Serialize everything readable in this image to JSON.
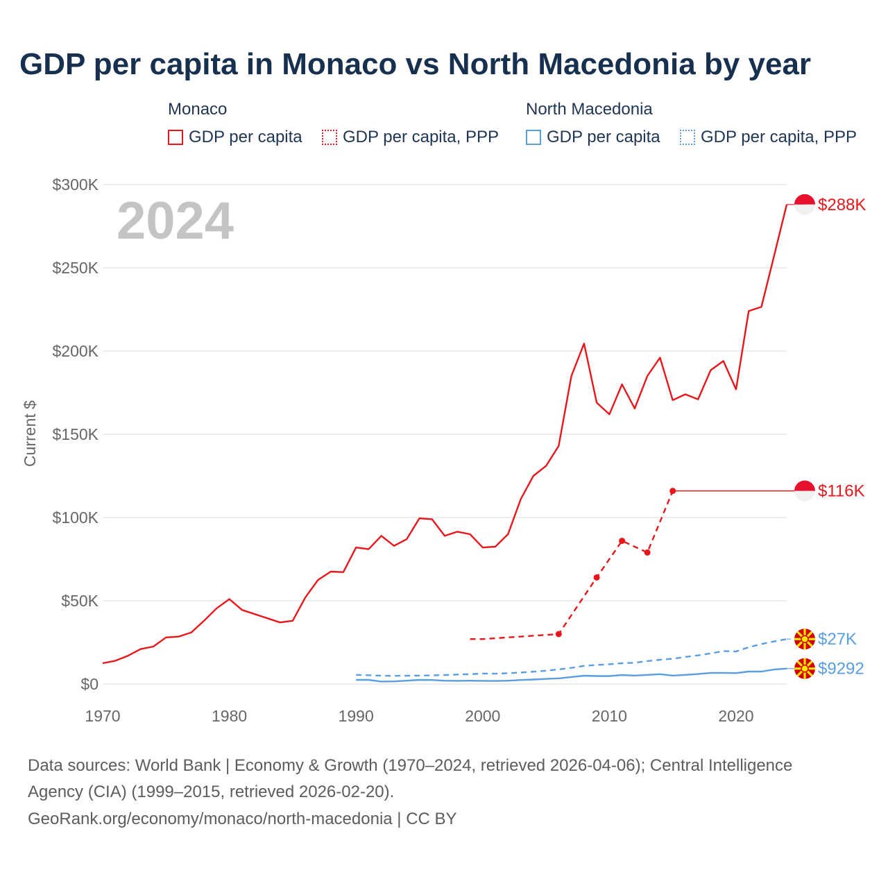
{
  "title": "GDP per capita in Monaco vs North Macedonia by year",
  "legend": {
    "groups": [
      {
        "name": "Monaco",
        "items": [
          "GDP per capita",
          "GDP per capita, PPP"
        ],
        "color": "#e8161b"
      },
      {
        "name": "North Macedonia",
        "items": [
          "GDP per capita",
          "GDP per capita, PPP"
        ],
        "color": "#5a9de0"
      }
    ]
  },
  "footer": {
    "line1": "Data sources: World Bank | Economy & Growth (1970–2024, retrieved 2026-04-06); Central Intelligence",
    "line2": "Agency (CIA) (1999–2015, retrieved 2026-02-20).",
    "line3": "GeoRank.org/economy/monaco/north-macedonia | CC BY"
  },
  "chart_data": {
    "type": "line",
    "year_label": "2024",
    "ylabel": "Current $",
    "xlim": [
      1970,
      2024
    ],
    "ylim": [
      0,
      300000
    ],
    "x_ticks": [
      1970,
      1980,
      1990,
      2000,
      2010,
      2020
    ],
    "y_ticks": [
      {
        "value": 0,
        "label": "$0"
      },
      {
        "value": 50000,
        "label": "$50K"
      },
      {
        "value": 100000,
        "label": "$100K"
      },
      {
        "value": 150000,
        "label": "$150K"
      },
      {
        "value": 200000,
        "label": "$200K"
      },
      {
        "value": 250000,
        "label": "$250K"
      },
      {
        "value": 300000,
        "label": "$300K"
      }
    ],
    "series": [
      {
        "name": "Monaco GDP per capita",
        "country": "Monaco",
        "color": "#e8161b",
        "style": "solid",
        "end_label": "$288K",
        "x": [
          1970,
          1971,
          1972,
          1973,
          1974,
          1975,
          1976,
          1977,
          1978,
          1979,
          1980,
          1981,
          1982,
          1983,
          1984,
          1985,
          1986,
          1987,
          1988,
          1989,
          1990,
          1991,
          1992,
          1993,
          1994,
          1995,
          1996,
          1997,
          1998,
          1999,
          2000,
          2001,
          2002,
          2003,
          2004,
          2005,
          2006,
          2007,
          2008,
          2009,
          2010,
          2011,
          2012,
          2013,
          2014,
          2015,
          2016,
          2017,
          2018,
          2019,
          2020,
          2021,
          2022,
          2023,
          2024
        ],
        "values": [
          12500,
          14000,
          17000,
          21000,
          22500,
          28000,
          28500,
          31000,
          38000,
          45500,
          51000,
          44500,
          42000,
          39500,
          37000,
          38000,
          52000,
          62500,
          67500,
          67200,
          82000,
          81000,
          89000,
          83000,
          87000,
          99500,
          99000,
          89000,
          91500,
          90000,
          82000,
          82500,
          90000,
          111000,
          125000,
          131000,
          143000,
          185000,
          204500,
          169000,
          162000,
          180000,
          165500,
          185000,
          196000,
          170500,
          174000,
          171000,
          188500,
          194000,
          177000,
          224000,
          226500,
          257000,
          288000
        ]
      },
      {
        "name": "Monaco GDP per capita, PPP",
        "country": "Monaco",
        "color": "#e8161b",
        "style": "dashed",
        "end_label": "$116K",
        "x": [
          1999,
          2000,
          2006,
          2009,
          2011,
          2013,
          2015
        ],
        "values": [
          27000,
          27000,
          30000,
          64000,
          86000,
          79000,
          116000
        ],
        "markers": [
          2006,
          2009,
          2011,
          2013,
          2015
        ],
        "extend_to": 2024
      },
      {
        "name": "North Macedonia GDP per capita",
        "country": "North Macedonia",
        "color": "#5a9de0",
        "style": "solid",
        "end_label": "$9292",
        "x": [
          1990,
          1991,
          1992,
          1993,
          1994,
          1995,
          1996,
          1997,
          1998,
          1999,
          2000,
          2001,
          2002,
          2003,
          2004,
          2005,
          2006,
          2007,
          2008,
          2009,
          2010,
          2011,
          2012,
          2013,
          2014,
          2015,
          2016,
          2017,
          2018,
          2019,
          2020,
          2021,
          2022,
          2023,
          2024
        ],
        "values": [
          2500,
          2500,
          1500,
          1600,
          2000,
          2500,
          2400,
          2000,
          1900,
          2000,
          1900,
          1850,
          2000,
          2400,
          2700,
          3100,
          3400,
          4200,
          5000,
          4800,
          4800,
          5400,
          5100,
          5500,
          5900,
          5100,
          5500,
          6000,
          6700,
          6700,
          6600,
          7500,
          7500,
          8700,
          9292
        ]
      },
      {
        "name": "North Macedonia GDP per capita, PPP",
        "country": "North Macedonia",
        "color": "#5a9de0",
        "style": "dashed",
        "end_label": "$27K",
        "x": [
          1990,
          1991,
          1992,
          1993,
          1994,
          1995,
          1996,
          1997,
          1998,
          1999,
          2000,
          2001,
          2002,
          2003,
          2004,
          2005,
          2006,
          2007,
          2008,
          2009,
          2010,
          2011,
          2012,
          2013,
          2014,
          2015,
          2016,
          2017,
          2018,
          2019,
          2020,
          2021,
          2022,
          2023,
          2024
        ],
        "values": [
          5500,
          5300,
          5000,
          4900,
          5000,
          5100,
          5200,
          5400,
          5700,
          5900,
          6300,
          6200,
          6500,
          6900,
          7400,
          8000,
          8800,
          9700,
          10900,
          11400,
          11900,
          12500,
          12800,
          13800,
          14600,
          15200,
          16300,
          17200,
          18400,
          19800,
          19600,
          22100,
          24000,
          25600,
          27000
        ]
      }
    ]
  }
}
